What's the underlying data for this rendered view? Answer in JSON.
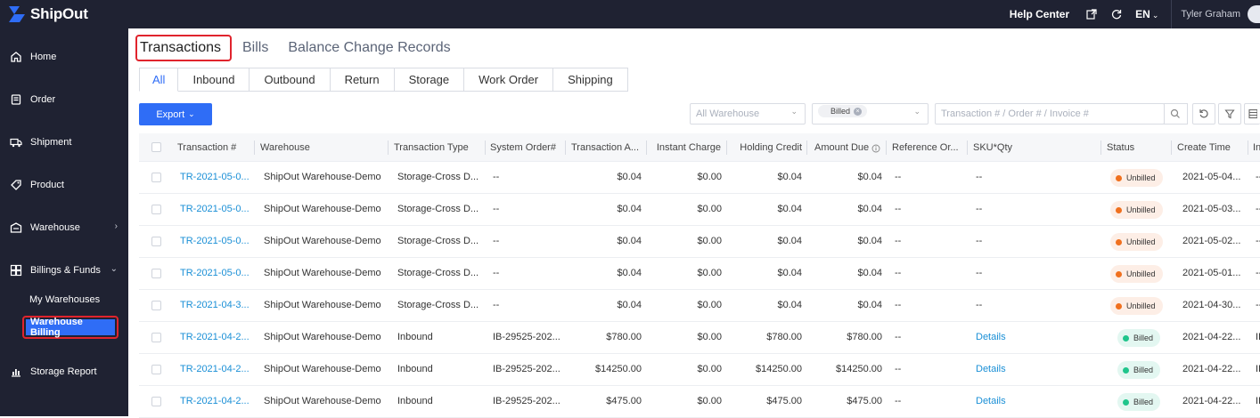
{
  "app": {
    "name": "ShipOut"
  },
  "topbar": {
    "help_center": "Help Center",
    "language": "EN",
    "user_name": "Tyler Graham",
    "icons": [
      "external-link-icon",
      "refresh-icon"
    ]
  },
  "sidebar": {
    "items": [
      {
        "label": "Home",
        "icon": "home-icon"
      },
      {
        "label": "Order",
        "icon": "order-icon"
      },
      {
        "label": "Shipment",
        "icon": "shipment-icon"
      },
      {
        "label": "Product",
        "icon": "tag-icon"
      },
      {
        "label": "Warehouse",
        "icon": "warehouse-icon"
      },
      {
        "label": "Billings & Funds",
        "icon": "billing-icon"
      },
      {
        "label": "Storage Report",
        "icon": "chart-icon"
      }
    ],
    "sub_items": [
      {
        "label": "My Warehouses"
      },
      {
        "label": "Warehouse Billing",
        "active": true
      }
    ]
  },
  "main": {
    "tabs": [
      {
        "label": "Transactions",
        "active": true
      },
      {
        "label": "Bills"
      },
      {
        "label": "Balance Change Records"
      }
    ],
    "sub_tabs": [
      {
        "label": "All",
        "active": true
      },
      {
        "label": "Inbound"
      },
      {
        "label": "Outbound"
      },
      {
        "label": "Return"
      },
      {
        "label": "Storage"
      },
      {
        "label": "Work Order"
      },
      {
        "label": "Shipping"
      }
    ],
    "export_label": "Export",
    "filters": {
      "warehouse_placeholder": "All Warehouse",
      "status_chip": "Billed",
      "search_placeholder": "Transaction # / Order # / Invoice #"
    },
    "colors": {
      "accent": "#2f6df6",
      "sidebar_bg": "#1f2232",
      "highlight": "#e0242d",
      "link": "#1a8fd6"
    }
  },
  "table": {
    "columns": [
      "Transaction #",
      "Warehouse",
      "Transaction Type",
      "System Order#",
      "Transaction A...",
      "Instant Charge",
      "Holding Credit",
      "Amount Due",
      "Reference Or...",
      "SKU*Qty",
      "Status",
      "Create Time",
      "In"
    ],
    "rows": [
      {
        "txn": "TR-2021-05-0...",
        "warehouse": "ShipOut Warehouse-Demo",
        "type": "Storage-Cross D...",
        "sys_order": "--",
        "amount": "$0.04",
        "instant": "$0.00",
        "holding": "$0.04",
        "due": "$0.04",
        "ref": "--",
        "sku": "--",
        "status": "Unbilled",
        "time": "2021-05-04...",
        "extra": "--"
      },
      {
        "txn": "TR-2021-05-0...",
        "warehouse": "ShipOut Warehouse-Demo",
        "type": "Storage-Cross D...",
        "sys_order": "--",
        "amount": "$0.04",
        "instant": "$0.00",
        "holding": "$0.04",
        "due": "$0.04",
        "ref": "--",
        "sku": "--",
        "status": "Unbilled",
        "time": "2021-05-03...",
        "extra": "--"
      },
      {
        "txn": "TR-2021-05-0...",
        "warehouse": "ShipOut Warehouse-Demo",
        "type": "Storage-Cross D...",
        "sys_order": "--",
        "amount": "$0.04",
        "instant": "$0.00",
        "holding": "$0.04",
        "due": "$0.04",
        "ref": "--",
        "sku": "--",
        "status": "Unbilled",
        "time": "2021-05-02...",
        "extra": "--"
      },
      {
        "txn": "TR-2021-05-0...",
        "warehouse": "ShipOut Warehouse-Demo",
        "type": "Storage-Cross D...",
        "sys_order": "--",
        "amount": "$0.04",
        "instant": "$0.00",
        "holding": "$0.04",
        "due": "$0.04",
        "ref": "--",
        "sku": "--",
        "status": "Unbilled",
        "time": "2021-05-01...",
        "extra": "--"
      },
      {
        "txn": "TR-2021-04-3...",
        "warehouse": "ShipOut Warehouse-Demo",
        "type": "Storage-Cross D...",
        "sys_order": "--",
        "amount": "$0.04",
        "instant": "$0.00",
        "holding": "$0.04",
        "due": "$0.04",
        "ref": "--",
        "sku": "--",
        "status": "Unbilled",
        "time": "2021-04-30...",
        "extra": "--"
      },
      {
        "txn": "TR-2021-04-2...",
        "warehouse": "ShipOut Warehouse-Demo",
        "type": "Inbound",
        "sys_order": "IB-29525-202...",
        "amount": "$780.00",
        "instant": "$0.00",
        "holding": "$780.00",
        "due": "$780.00",
        "ref": "--",
        "sku": "Details",
        "status": "Billed",
        "time": "2021-04-22...",
        "extra": "II"
      },
      {
        "txn": "TR-2021-04-2...",
        "warehouse": "ShipOut Warehouse-Demo",
        "type": "Inbound",
        "sys_order": "IB-29525-202...",
        "amount": "$14250.00",
        "instant": "$0.00",
        "holding": "$14250.00",
        "due": "$14250.00",
        "ref": "--",
        "sku": "Details",
        "status": "Billed",
        "time": "2021-04-22...",
        "extra": "II"
      },
      {
        "txn": "TR-2021-04-2...",
        "warehouse": "ShipOut Warehouse-Demo",
        "type": "Inbound",
        "sys_order": "IB-29525-202...",
        "amount": "$475.00",
        "instant": "$0.00",
        "holding": "$475.00",
        "due": "$475.00",
        "ref": "--",
        "sku": "Details",
        "status": "Billed",
        "time": "2021-04-22...",
        "extra": "II"
      }
    ]
  }
}
